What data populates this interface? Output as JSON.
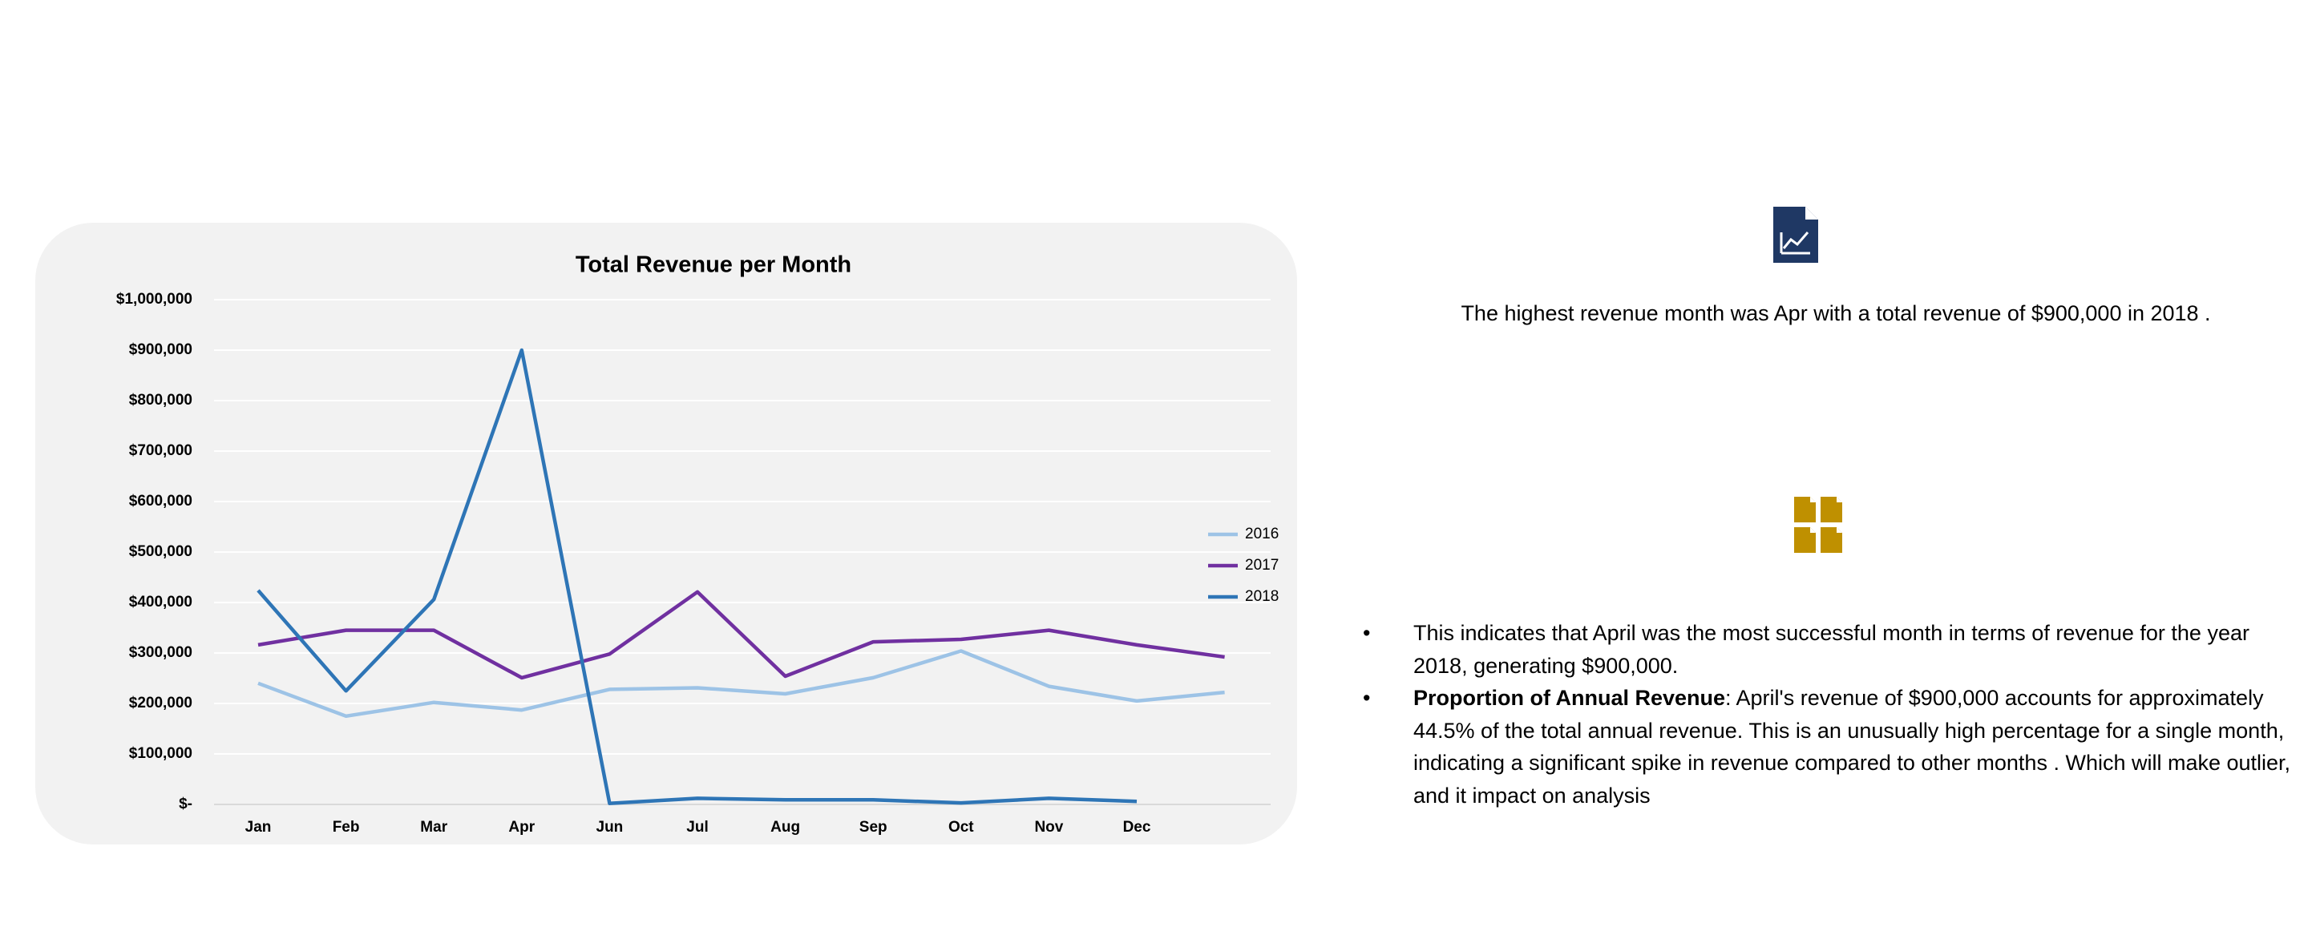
{
  "chart_data": {
    "type": "line",
    "title": "Total Revenue per Month",
    "categories": [
      "Jan",
      "Feb",
      "Mar",
      "Apr",
      "Jun",
      "Jul",
      "Aug",
      "Sep",
      "Oct",
      "Nov",
      "Dec",
      null
    ],
    "series": [
      {
        "name": "2016",
        "color": "#9dc3e6",
        "values": [
          240000,
          175000,
          202000,
          187000,
          228000,
          231000,
          219000,
          251000,
          304000,
          234000,
          205000,
          222000
        ]
      },
      {
        "name": "2017",
        "color": "#7030a0",
        "values": [
          316000,
          345000,
          345000,
          251000,
          298000,
          421000,
          254000,
          322000,
          327000,
          345000,
          316000,
          292000
        ]
      },
      {
        "name": "2018",
        "color": "#2e75b6",
        "values": [
          424000,
          225000,
          406000,
          900000,
          2000,
          12000,
          9000,
          9000,
          3000,
          12000,
          6000,
          null
        ]
      }
    ],
    "ylim": [
      0,
      1000000
    ],
    "yticks": [
      {
        "value": 0,
        "label": "$-"
      },
      {
        "value": 100000,
        "label": "$100,000"
      },
      {
        "value": 200000,
        "label": "$200,000"
      },
      {
        "value": 300000,
        "label": "$300,000"
      },
      {
        "value": 400000,
        "label": "$400,000"
      },
      {
        "value": 500000,
        "label": "$500,000"
      },
      {
        "value": 600000,
        "label": "$600,000"
      },
      {
        "value": 700000,
        "label": "$700,000"
      },
      {
        "value": 800000,
        "label": "$800,000"
      },
      {
        "value": 900000,
        "label": "$900,000"
      },
      {
        "value": 1000000,
        "label": "$1,000,000"
      }
    ],
    "grid": true,
    "legend": "right"
  },
  "insights": {
    "headline": "The highest revenue month was Apr with a total revenue of $900,000 in 2018 .",
    "bullets": [
      {
        "text": "This indicates that April was the most successful month in terms of revenue for the year 2018, generating $900,000."
      },
      {
        "bold": "Proportion of Annual Revenue",
        "text": ": April's revenue of $900,000 accounts for approximately 44.5% of the total annual revenue. This is an unusually high percentage for a single month, indicating a significant spike in revenue compared to other months . Which will make outlier, and it impact on analysis"
      }
    ]
  }
}
